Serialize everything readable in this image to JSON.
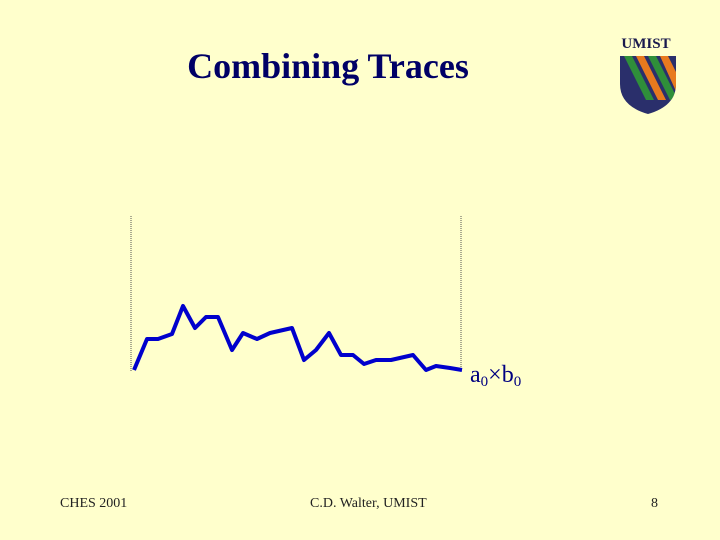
{
  "slide": {
    "title": "Combining Traces",
    "logo_text": "UMIST",
    "trace_label_var1": "a",
    "trace_label_sub1": "0",
    "trace_label_op": "×",
    "trace_label_var2": "b",
    "trace_label_sub2": "0"
  },
  "footer": {
    "left": "CHES 2001",
    "center": "C.D. Walter, UMIST",
    "page": "8"
  },
  "colors": {
    "background": "#ffffcc",
    "title": "#000066",
    "trace": "#0000cc"
  }
}
